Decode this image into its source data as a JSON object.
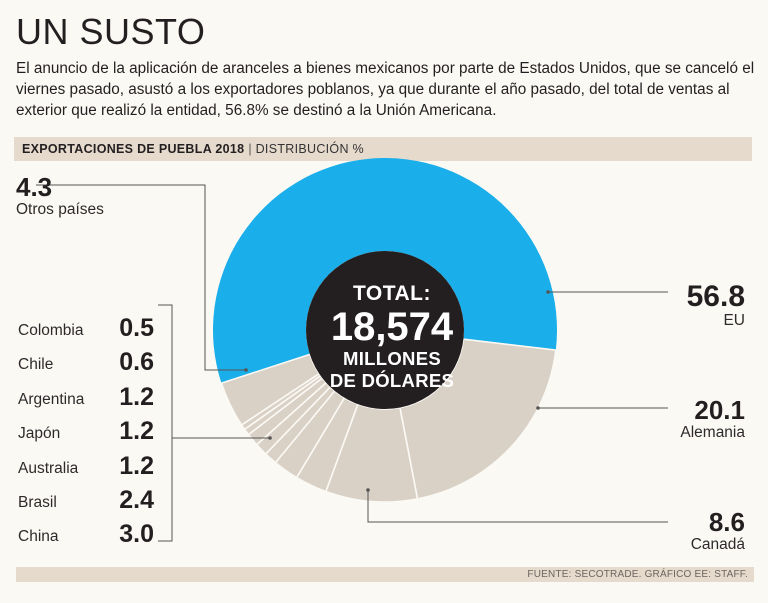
{
  "header": {
    "title": "UN SUSTO",
    "intro": "El anuncio de la aplicación de aranceles a bienes mexicanos por parte de Estados Unidos, que se canceló el viernes pasado, asustó a los exportadores poblanos, ya que durante el año pasado, del total de ventas al exterior que realizó la entidad, 56.8% se destinó a la Unión Americana."
  },
  "subheader": {
    "title": "EXPORTACIONES DE PUEBLA 2018",
    "separator": "|",
    "unit": "DISTRIBUCIÓN %"
  },
  "center": {
    "top": "TOTAL:",
    "value": "18,574",
    "line1": "MILLONES",
    "line2": "DE DÓLARES"
  },
  "colors": {
    "background": "#fbf9f4",
    "eu": "#1aaeea",
    "others": "#d9d0c6",
    "center": "#231f20",
    "band": "#e6dacd"
  },
  "chart_data": {
    "type": "pie",
    "title": "EXPORTACIONES DE PUEBLA 2018",
    "unit": "DISTRIBUCIÓN %",
    "total_label": "18,574 MILLONES DE DÓLARES",
    "slices": [
      {
        "name": "EU",
        "value": 56.8
      },
      {
        "name": "Alemania",
        "value": 20.1
      },
      {
        "name": "Canadá",
        "value": 8.6
      },
      {
        "name": "China",
        "value": 3.0
      },
      {
        "name": "Brasil",
        "value": 2.4
      },
      {
        "name": "Australia",
        "value": 1.2
      },
      {
        "name": "Japón",
        "value": 1.2
      },
      {
        "name": "Argentina",
        "value": 1.2
      },
      {
        "name": "Chile",
        "value": 0.6
      },
      {
        "name": "Colombia",
        "value": 0.5
      },
      {
        "name": "Otros países",
        "value": 4.3
      }
    ]
  },
  "labels": {
    "otros": {
      "value": "4.3",
      "name": "Otros países"
    },
    "eu": {
      "value": "56.8",
      "name": "EU"
    },
    "alemania": {
      "value": "20.1",
      "name": "Alemania"
    },
    "canada": {
      "value": "8.6",
      "name": "Canadá"
    },
    "list": [
      {
        "name": "Colombia",
        "value": "0.5"
      },
      {
        "name": "Chile",
        "value": "0.6"
      },
      {
        "name": "Argentina",
        "value": "1.2"
      },
      {
        "name": "Japón",
        "value": "1.2"
      },
      {
        "name": "Australia",
        "value": "1.2"
      },
      {
        "name": "Brasil",
        "value": "2.4"
      },
      {
        "name": "China",
        "value": "3.0"
      }
    ]
  },
  "footer": {
    "source": "FUENTE: SECOTRADE. GRÁFICO EE: STAFF."
  }
}
